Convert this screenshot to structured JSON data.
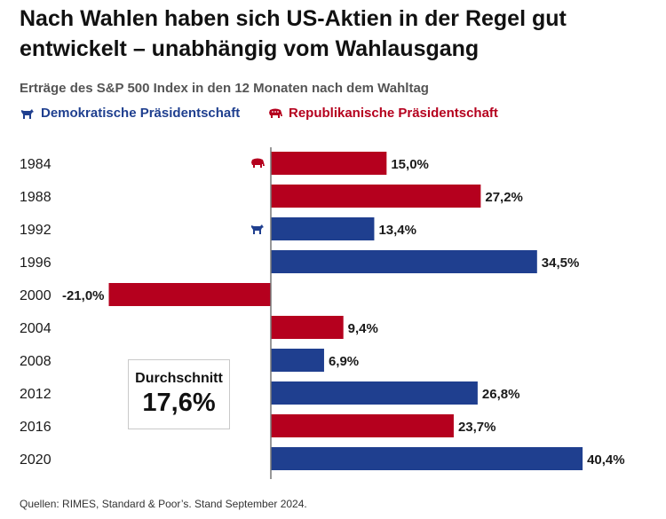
{
  "title": "Nach Wahlen haben sich US-Aktien in der Regel gut entwickelt – unabhängig vom Wahlausgang",
  "colors": {
    "democrat": "#1f3f8f",
    "republican": "#b5001e",
    "axis": "#777777"
  },
  "chart_data": {
    "type": "bar",
    "orientation": "horizontal",
    "title": "Erträge des S&P 500 Index in den 12 Monaten nach dem Wahltag",
    "xlabel": "",
    "ylabel": "",
    "unit": "%",
    "xlim": [
      -21.0,
      40.4
    ],
    "legend": [
      {
        "party": "democrat",
        "label": "Demokratische Präsidentschaft",
        "icon": "donkey-icon"
      },
      {
        "party": "republican",
        "label": "Republikanische Präsidentschaft",
        "icon": "elephant-icon"
      }
    ],
    "categories": [
      "1984",
      "1988",
      "1992",
      "1996",
      "2000",
      "2004",
      "2008",
      "2012",
      "2016",
      "2020"
    ],
    "values": [
      15.0,
      27.2,
      13.4,
      34.5,
      -21.0,
      9.4,
      6.9,
      26.8,
      23.7,
      40.4
    ],
    "value_labels": [
      "15,0%",
      "27,2%",
      "13,4%",
      "34,5%",
      "-21,0%",
      "9,4%",
      "6,9%",
      "26,8%",
      "23,7%",
      "40,4%"
    ],
    "party": [
      "republican",
      "republican",
      "democrat",
      "democrat",
      "republican",
      "republican",
      "democrat",
      "democrat",
      "republican",
      "democrat"
    ],
    "party_icons": [
      {
        "year": "1984",
        "icon": "elephant-icon"
      },
      {
        "year": "1992",
        "icon": "donkey-icon"
      }
    ],
    "average": {
      "label": "Durchschnitt",
      "value_label": "17,6%"
    }
  },
  "source": "Quellen: RIMES, Standard & Poor’s. Stand September 2024."
}
